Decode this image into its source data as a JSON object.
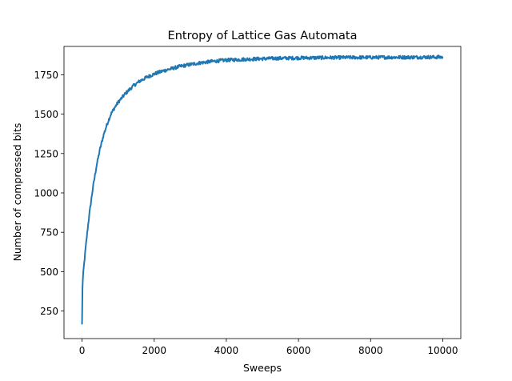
{
  "chart_data": {
    "type": "line",
    "title": "Entropy of Lattice Gas Automata",
    "xlabel": "Sweeps",
    "ylabel": "Number of compressed bits",
    "xlim": [
      -500,
      10500
    ],
    "ylim": [
      75,
      1930
    ],
    "x_ticks": [
      0,
      2000,
      4000,
      6000,
      8000,
      10000
    ],
    "y_ticks": [
      250,
      500,
      750,
      1000,
      1250,
      1500,
      1750
    ],
    "grid": false,
    "legend": "none",
    "colors": {
      "series": "#1f77b4"
    },
    "series": [
      {
        "x": [
          0,
          10,
          25,
          50,
          100,
          150,
          200,
          300,
          400,
          500,
          600,
          700,
          800,
          900,
          1000,
          1200,
          1400,
          1600,
          1800,
          2000,
          2250,
          2500,
          2750,
          3000,
          3250,
          3500,
          3750,
          4000,
          4500,
          5000,
          5500,
          6000,
          6500,
          7000,
          7500,
          8000,
          8500,
          9000,
          9500,
          10000
        ],
        "values": [
          165,
          390,
          460,
          530,
          650,
          760,
          860,
          1030,
          1170,
          1280,
          1370,
          1440,
          1500,
          1540,
          1575,
          1630,
          1675,
          1710,
          1735,
          1755,
          1775,
          1790,
          1805,
          1815,
          1825,
          1832,
          1838,
          1843,
          1848,
          1852,
          1855,
          1857,
          1858,
          1859,
          1860,
          1860,
          1861,
          1861,
          1862,
          1862
        ]
      }
    ]
  }
}
